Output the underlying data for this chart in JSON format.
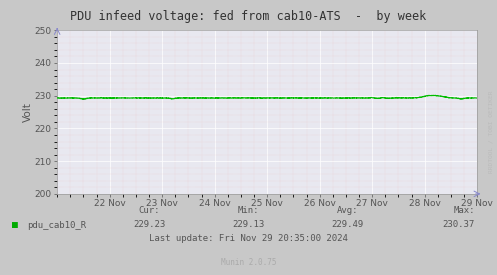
{
  "title": "PDU infeed voltage: fed from cab10-ATS  -  by week",
  "ylabel": "Volt",
  "bg_color": "#c8c8c8",
  "plot_bg_color": "#e8e8f0",
  "major_grid_color": "#ffffff",
  "minor_grid_color_h": "#f0c0c0",
  "minor_grid_color_v": "#f0c0c0",
  "line_color": "#00bb00",
  "line_width": 0.8,
  "ylim": [
    200,
    250
  ],
  "yticks": [
    200,
    210,
    220,
    230,
    240,
    250
  ],
  "x_labels": [
    "22 Nov",
    "23 Nov",
    "24 Nov",
    "25 Nov",
    "26 Nov",
    "27 Nov",
    "28 Nov",
    "29 Nov"
  ],
  "legend_label": "pdu_cab10_R",
  "legend_color": "#00aa00",
  "cur_val": "229.23",
  "min_val": "229.13",
  "avg_val": "229.49",
  "max_val": "230.37",
  "last_update": "Last update: Fri Nov 29 20:35:00 2024",
  "munin_version": "Munin 2.0.75",
  "watermark": "RRDTOOL / TOBI OETIKER",
  "base_voltage": 229.3,
  "text_color": "#555555"
}
